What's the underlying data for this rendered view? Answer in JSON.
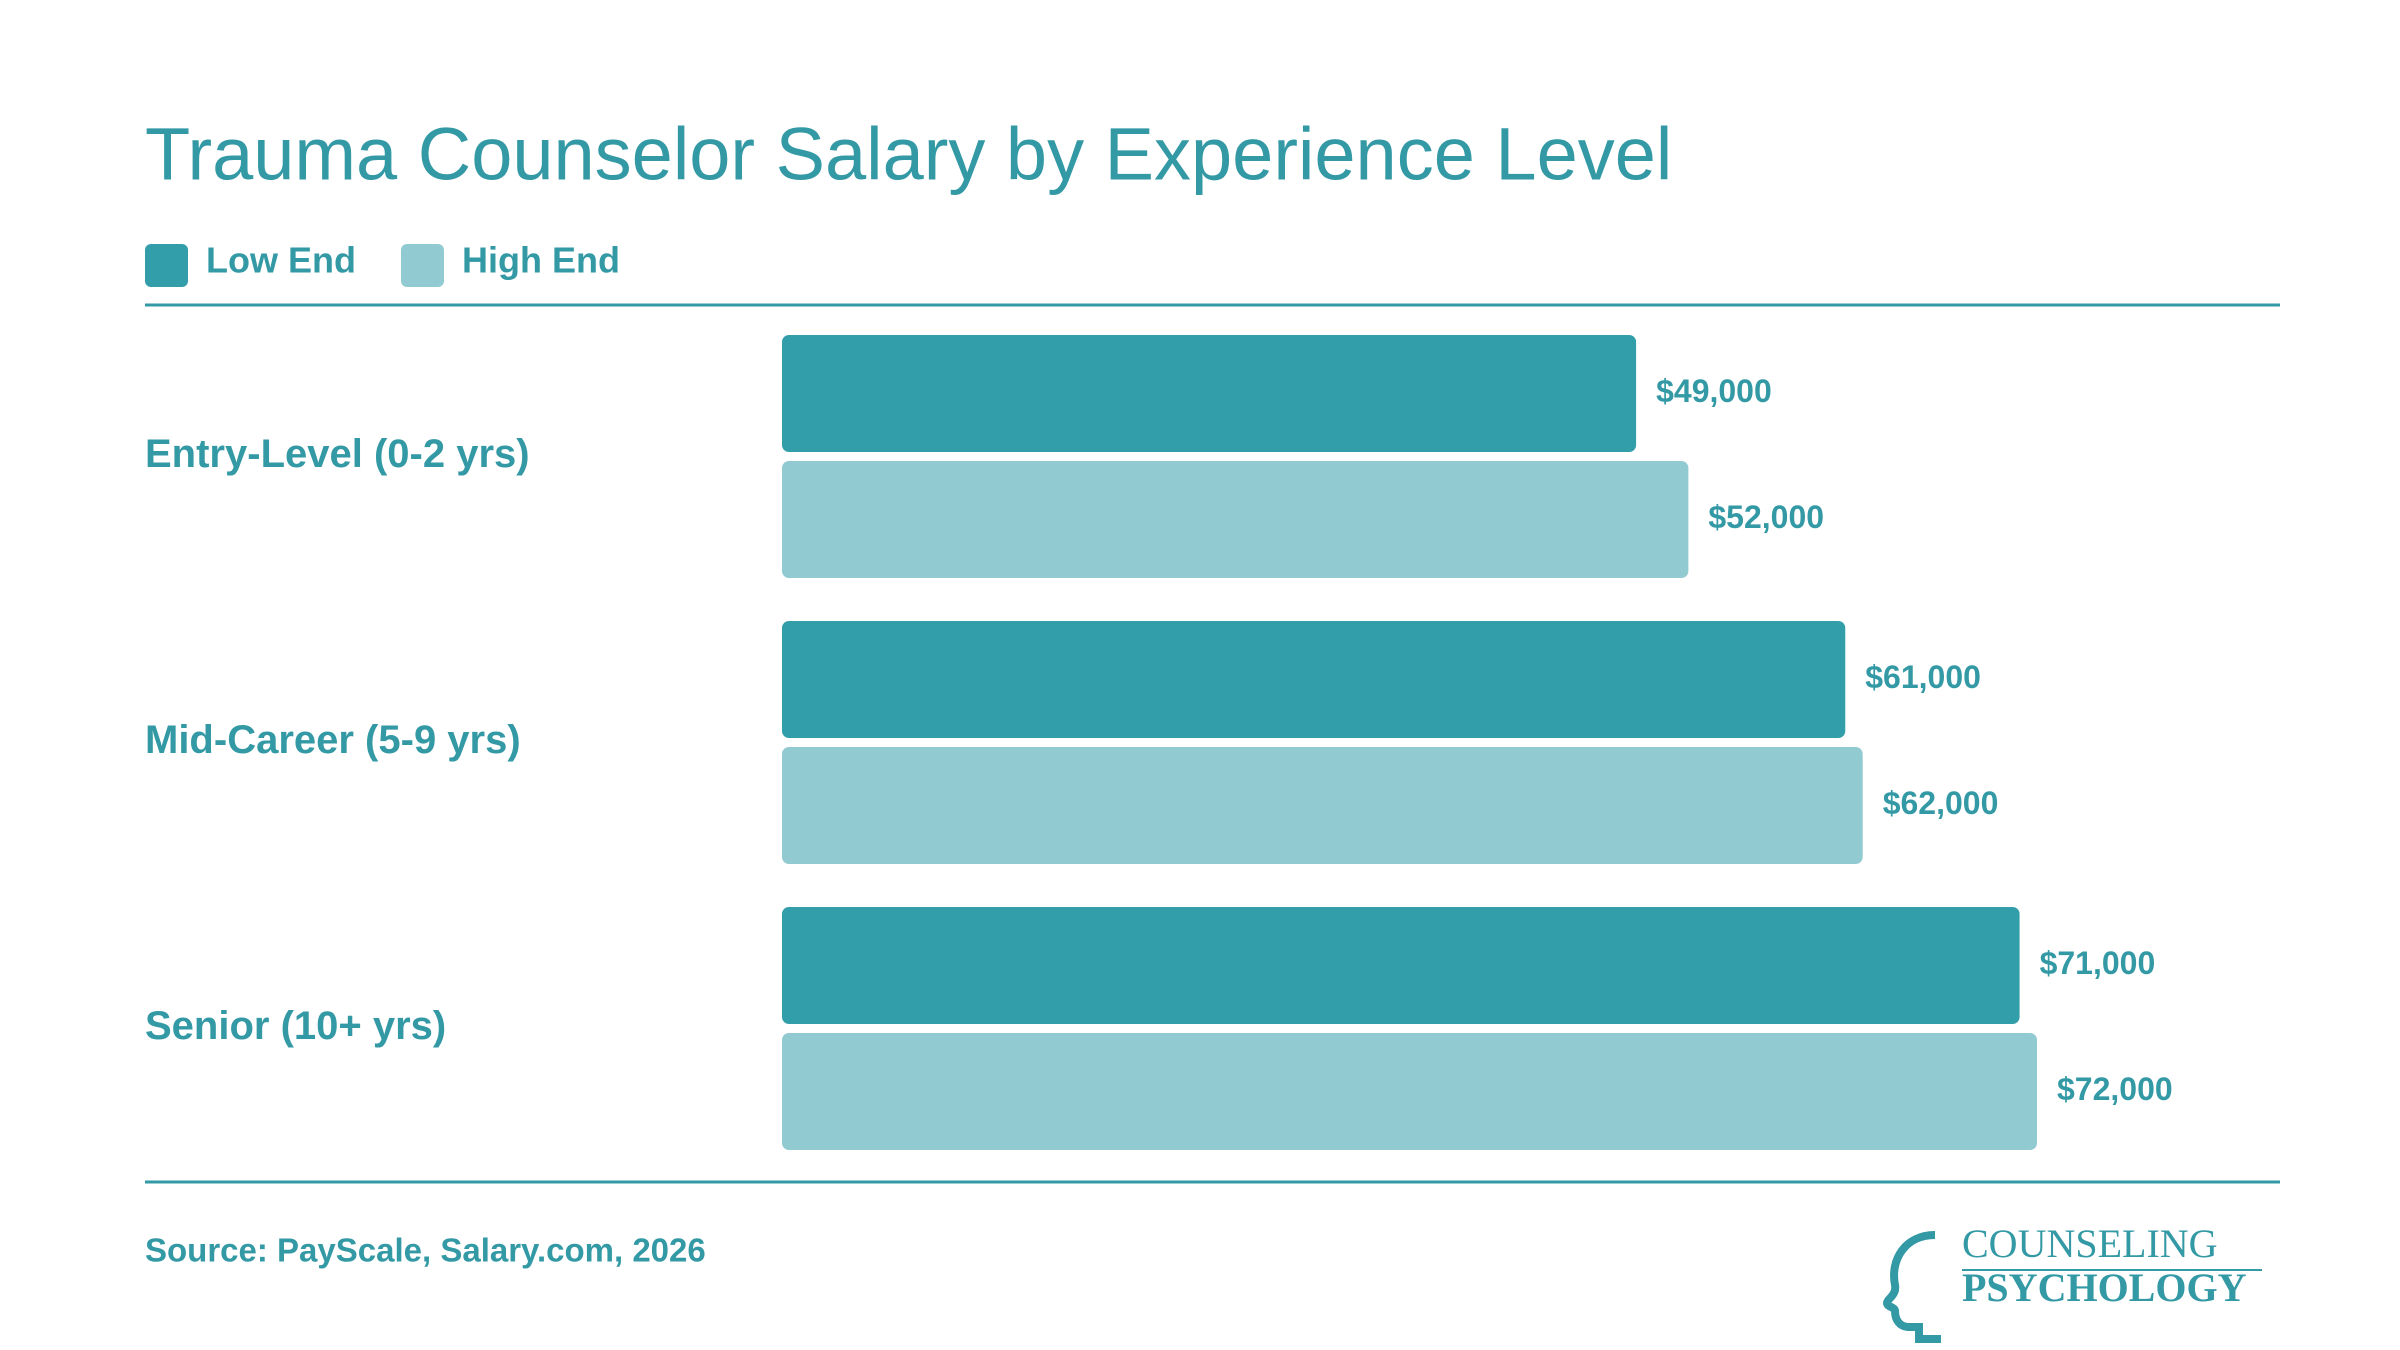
{
  "chart_data": {
    "type": "bar",
    "orientation": "horizontal",
    "title": "Trauma Counselor Salary by Experience Level",
    "categories": [
      "Entry-Level (0-2 yrs)",
      "Mid-Career (5-9 yrs)",
      "Senior (10+ yrs)"
    ],
    "series": [
      {
        "name": "Low End",
        "color": "#329ea9",
        "values": [
          49000,
          61000,
          71000
        ],
        "value_labels": [
          "$49,000",
          "$61,000",
          "$71,000"
        ]
      },
      {
        "name": "High End",
        "color": "#92cad2",
        "values": [
          52000,
          62000,
          72000
        ],
        "value_labels": [
          "$52,000",
          "$62,000",
          "$72,000"
        ]
      }
    ],
    "source": "Source: PayScale, Salary.com, 2026"
  },
  "logo": {
    "line1": "COUNSELING",
    "line2": "PSYCHOLOGY"
  }
}
